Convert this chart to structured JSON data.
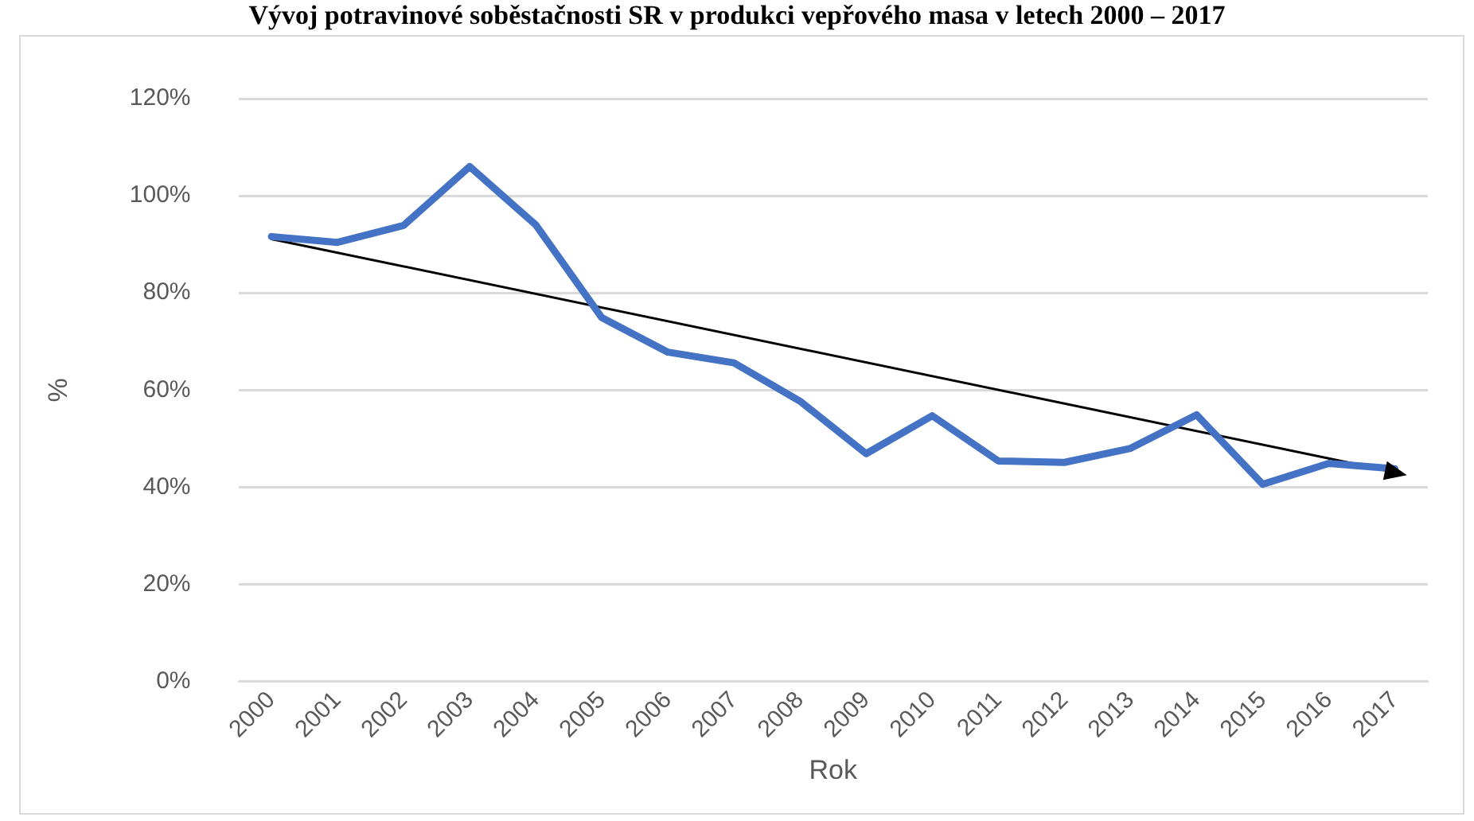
{
  "chart_data": {
    "type": "line",
    "title": "Vývoj potravinové soběstačnosti SR v produkci vepřového masa v letech 2000 – 2017",
    "xlabel": "Rok",
    "ylabel": "%",
    "categories": [
      "2000",
      "2001",
      "2002",
      "2003",
      "2004",
      "2005",
      "2006",
      "2007",
      "2008",
      "2009",
      "2010",
      "2011",
      "2012",
      "2013",
      "2014",
      "2015",
      "2016",
      "2017"
    ],
    "series": [
      {
        "color": "#4472c4",
        "values": [
          91.6,
          90.4,
          93.9,
          106,
          94,
          74.9,
          67.8,
          65.6,
          57.7,
          46.9,
          54.7,
          45.4,
          45.1,
          48,
          54.9,
          40.6,
          44.9,
          43.8
        ]
      },
      {
        "type": "line",
        "color": "#000000",
        "values": [
          91.1,
          null,
          null,
          null,
          null,
          null,
          null,
          null,
          null,
          null,
          null,
          null,
          null,
          null,
          null,
          null,
          null,
          43.1
        ]
      }
    ],
    "ylim": [
      0,
      120
    ],
    "yticks": [
      {
        "value": 0,
        "label": "0%"
      },
      {
        "value": 20,
        "label": "20%"
      },
      {
        "value": 40,
        "label": "40%"
      },
      {
        "value": 60,
        "label": "60%"
      },
      {
        "value": 80,
        "label": "80%"
      },
      {
        "value": 100,
        "label": "100%"
      },
      {
        "value": 120,
        "label": "120%"
      }
    ],
    "grid": "y",
    "legend": false,
    "line_style": "solid"
  }
}
